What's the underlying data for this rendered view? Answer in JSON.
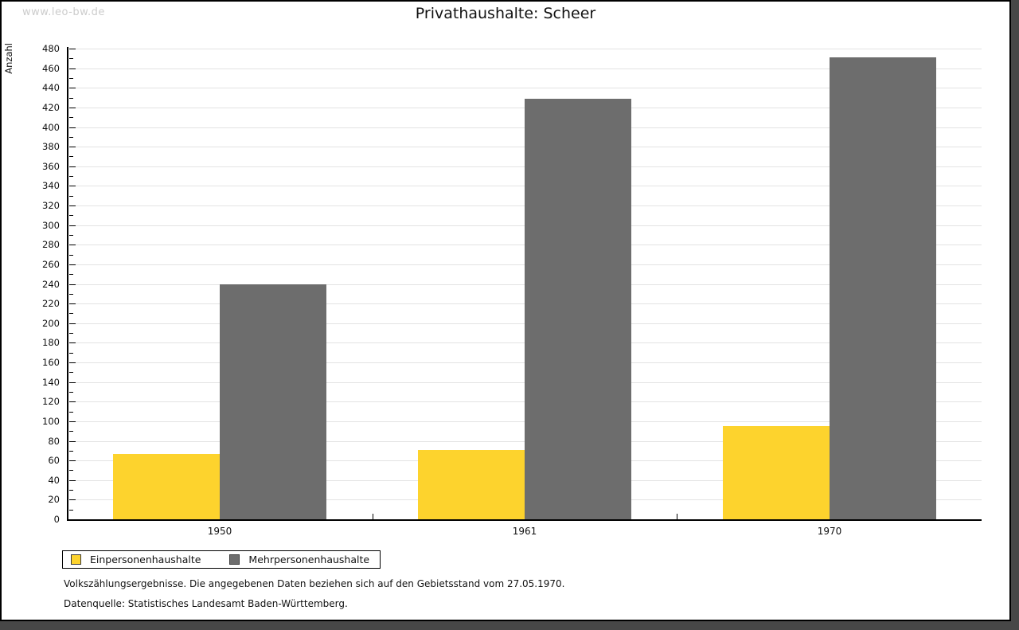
{
  "watermark": "www.leo-bw.de",
  "title": "Privathaushalte: Scheer",
  "chart_data": {
    "type": "bar",
    "title": "Privathaushalte: Scheer",
    "xlabel": "",
    "ylabel": "Anzahl",
    "categories": [
      "1950",
      "1961",
      "1970"
    ],
    "series": [
      {
        "name": "Einpersonenhaushalte",
        "color": "#FDD32D",
        "values": [
          67,
          71,
          95
        ]
      },
      {
        "name": "Mehrpersonenhaushalte",
        "color": "#6D6D6D",
        "values": [
          240,
          429,
          471
        ]
      }
    ],
    "ylim": [
      0,
      480
    ],
    "ytick_step": 20,
    "yminor_step": 10,
    "grid": true,
    "gridline_color": "#e3e3e3",
    "legend_position": "bottom-left"
  },
  "footnotes": {
    "line1": "Volkszählungsergebnisse. Die angegebenen Daten beziehen sich auf den Gebietsstand vom 27.05.1970.",
    "line2": "Datenquelle: Statistisches Landesamt Baden-Württemberg."
  }
}
